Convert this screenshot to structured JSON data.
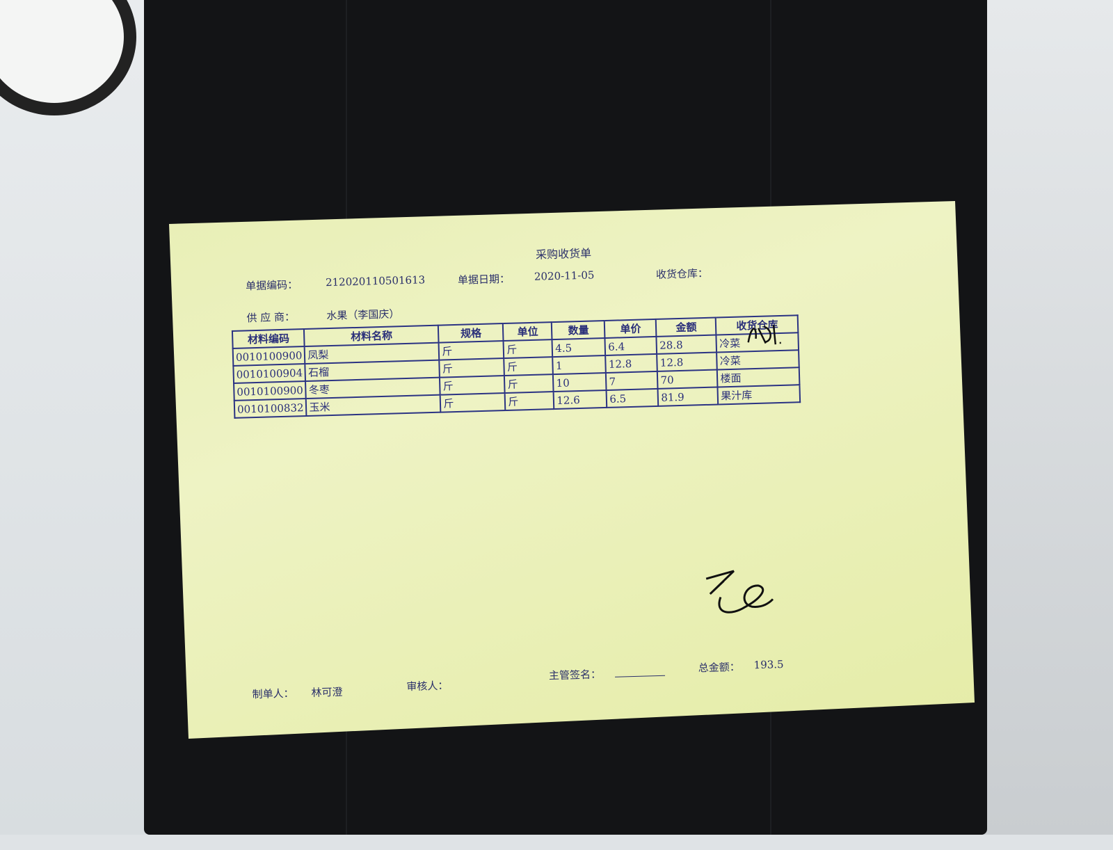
{
  "document": {
    "title": "采购收货单",
    "doc_no_label": "单据编码：",
    "doc_no": "212020110501613",
    "doc_date_label": "单据日期：",
    "doc_date": "2020-11-05",
    "warehouse_label": "收货仓库：",
    "supplier_label": "供 应 商：",
    "supplier": "水果（李国庆）",
    "table": {
      "headers": [
        "材料编码",
        "材料名称",
        "规格",
        "单位",
        "数量",
        "单价",
        "金额",
        "收货仓库"
      ],
      "rows": [
        {
          "code": "0010100900",
          "name": "凤梨",
          "spec": "斤",
          "unit": "斤",
          "qty": "4.5",
          "price": "6.4",
          "amount": "28.8",
          "warehouse": "冷菜"
        },
        {
          "code": "0010100904",
          "name": "石榴",
          "spec": "斤",
          "unit": "斤",
          "qty": "1",
          "price": "12.8",
          "amount": "12.8",
          "warehouse": "冷菜"
        },
        {
          "code": "0010100900",
          "name": "冬枣",
          "spec": "斤",
          "unit": "斤",
          "qty": "10",
          "price": "7",
          "amount": "70",
          "warehouse": "楼面"
        },
        {
          "code": "0010100832",
          "name": "玉米",
          "spec": "斤",
          "unit": "斤",
          "qty": "12.6",
          "price": "6.5",
          "amount": "81.9",
          "warehouse": "果汁库"
        }
      ]
    },
    "footer": {
      "maker_label": "制单人：",
      "maker": "林可澄",
      "reviewer_label": "审核人：",
      "supervisor_label": "主管签名：",
      "total_label": "总金额：",
      "total": "193.5"
    }
  },
  "colors": {
    "paper": "#e9efb5",
    "ink": "#2a2f7a",
    "tray": "#131416"
  }
}
